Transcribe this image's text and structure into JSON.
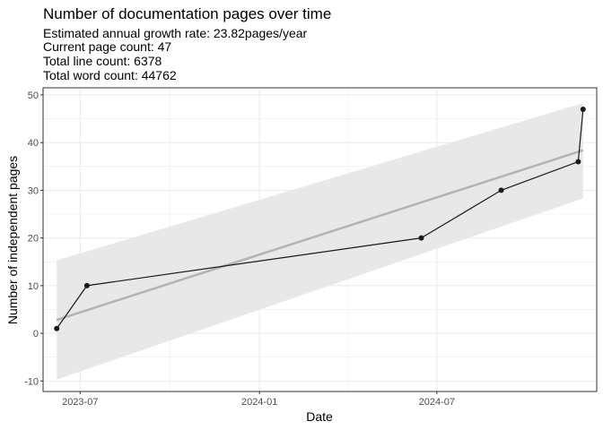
{
  "chart_data": {
    "type": "line",
    "title": "Number of documentation pages over time",
    "subtitle_lines": [
      "Estimated annual growth rate: 23.82pages/year",
      "Current page count: 47",
      "Total line count: 6378",
      "Total word count: 44762"
    ],
    "xlabel": "Date",
    "ylabel": "Number of independent pages",
    "x_ticks": [
      "2023-07",
      "2024-01",
      "2024-07"
    ],
    "y_ticks": [
      -10,
      0,
      10,
      20,
      30,
      40,
      50
    ],
    "xlim": [
      "2023-05-24",
      "2024-12-12"
    ],
    "ylim": [
      -12.2,
      51.5
    ],
    "grid": true,
    "series": [
      {
        "x": [
          "2023-06-07",
          "2023-07-08",
          "2024-06-15",
          "2024-09-05",
          "2024-11-23",
          "2024-11-28"
        ],
        "y": [
          1,
          10,
          20,
          30,
          36,
          47
        ]
      }
    ],
    "trend": {
      "x": [
        "2023-06-07",
        "2024-11-28"
      ],
      "y": [
        2.8,
        38.4
      ],
      "band_upper": [
        15.3,
        48.3
      ],
      "band_lower": [
        -9.7,
        28.3
      ],
      "color": "#b3b3b3",
      "band_color": "#e5e5e5"
    },
    "colors": {
      "line": "#1a1a1a",
      "point": "#1a1a1a",
      "grid": "#ebebeb",
      "panel_border": "#333333"
    }
  }
}
